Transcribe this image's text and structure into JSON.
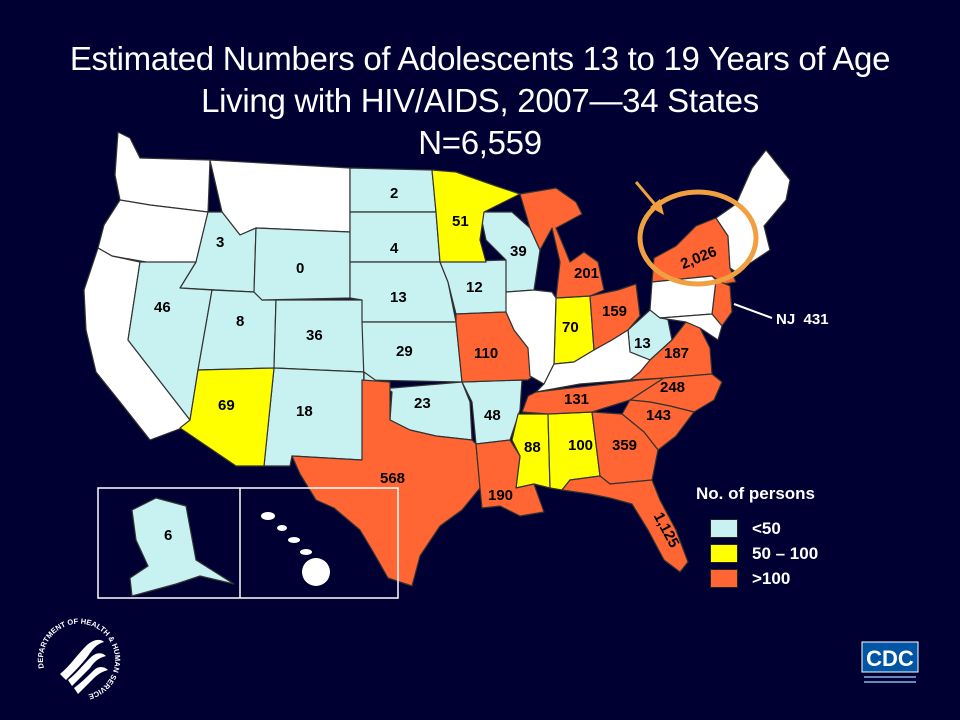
{
  "title": {
    "line1": "Estimated Numbers of Adolescents 13 to 19 Years of Age",
    "line2": "Living with HIV/AIDS, 2007—34 States",
    "line3": "N=6,559"
  },
  "colors": {
    "background": "#000033",
    "low": "#c8f2f2",
    "mid": "#ffff00",
    "high": "#ff6633",
    "none": "#ffffff",
    "highlight_ring": "#f0a040"
  },
  "legend": {
    "title": "No. of persons",
    "items": [
      {
        "label": "<50",
        "color": "#c8f2f2"
      },
      {
        "label": "50 – 100",
        "color": "#ffff00"
      },
      {
        "label": ">100",
        "color": "#ff6633"
      }
    ]
  },
  "states": {
    "ID": "3",
    "NV": "46",
    "UT": "8",
    "AZ": "69",
    "WY": "0",
    "CO": "36",
    "NM": "18",
    "ND": "2",
    "SD": "4",
    "NE": "13",
    "KS": "29",
    "OK": "23",
    "TX": "568",
    "MN": "51",
    "IA": "12",
    "MO": "110",
    "AR": "48",
    "LA": "190",
    "WI": "39",
    "MI": "201",
    "IN": "70",
    "OH": "159",
    "WV": "13",
    "VA": "187",
    "NC": "248",
    "SC": "143",
    "TN": "131",
    "MS": "88",
    "AL": "100",
    "GA": "359",
    "FL": "1,125",
    "NY": "2,026",
    "NJ": "NJ  431",
    "AK": "6"
  },
  "logos": {
    "hhs_seal": "DEPARTMENT OF HEALTH & HUMAN SERVICES • USA",
    "cdc": "CDC"
  }
}
